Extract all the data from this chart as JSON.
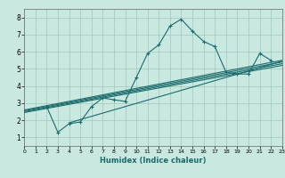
{
  "bg_color": "#c8e8e0",
  "grid_color": "#a0c8c0",
  "line_color": "#1a6b6b",
  "marker": "+",
  "markersize": 3,
  "linewidth": 0.8,
  "xlabel": "Humidex (Indice chaleur)",
  "xlim": [
    0,
    23
  ],
  "ylim": [
    0.5,
    8.5
  ],
  "xticks": [
    0,
    1,
    2,
    3,
    4,
    5,
    6,
    7,
    8,
    9,
    10,
    11,
    12,
    13,
    14,
    15,
    16,
    17,
    18,
    19,
    20,
    21,
    22,
    23
  ],
  "yticks": [
    1,
    2,
    3,
    4,
    5,
    6,
    7,
    8
  ],
  "main_x": [
    2,
    3,
    4,
    5,
    6,
    7,
    8,
    9,
    10,
    11,
    12,
    13,
    14,
    15,
    16,
    17,
    18,
    19,
    20,
    21,
    22
  ],
  "main_y": [
    2.8,
    1.3,
    1.8,
    1.9,
    2.8,
    3.3,
    3.2,
    3.1,
    4.5,
    5.9,
    6.4,
    7.5,
    7.9,
    7.2,
    6.6,
    6.3,
    4.8,
    4.7,
    4.7,
    5.9,
    5.5
  ],
  "line1_x": [
    0,
    23
  ],
  "line1_y": [
    2.6,
    5.5
  ],
  "line2_x": [
    0,
    23
  ],
  "line2_y": [
    2.55,
    5.4
  ],
  "line3_x": [
    0,
    23
  ],
  "line3_y": [
    2.5,
    5.3
  ],
  "line4_x": [
    0,
    23
  ],
  "line4_y": [
    2.45,
    5.2
  ],
  "line5_x": [
    4,
    23
  ],
  "line5_y": [
    1.85,
    5.45
  ]
}
